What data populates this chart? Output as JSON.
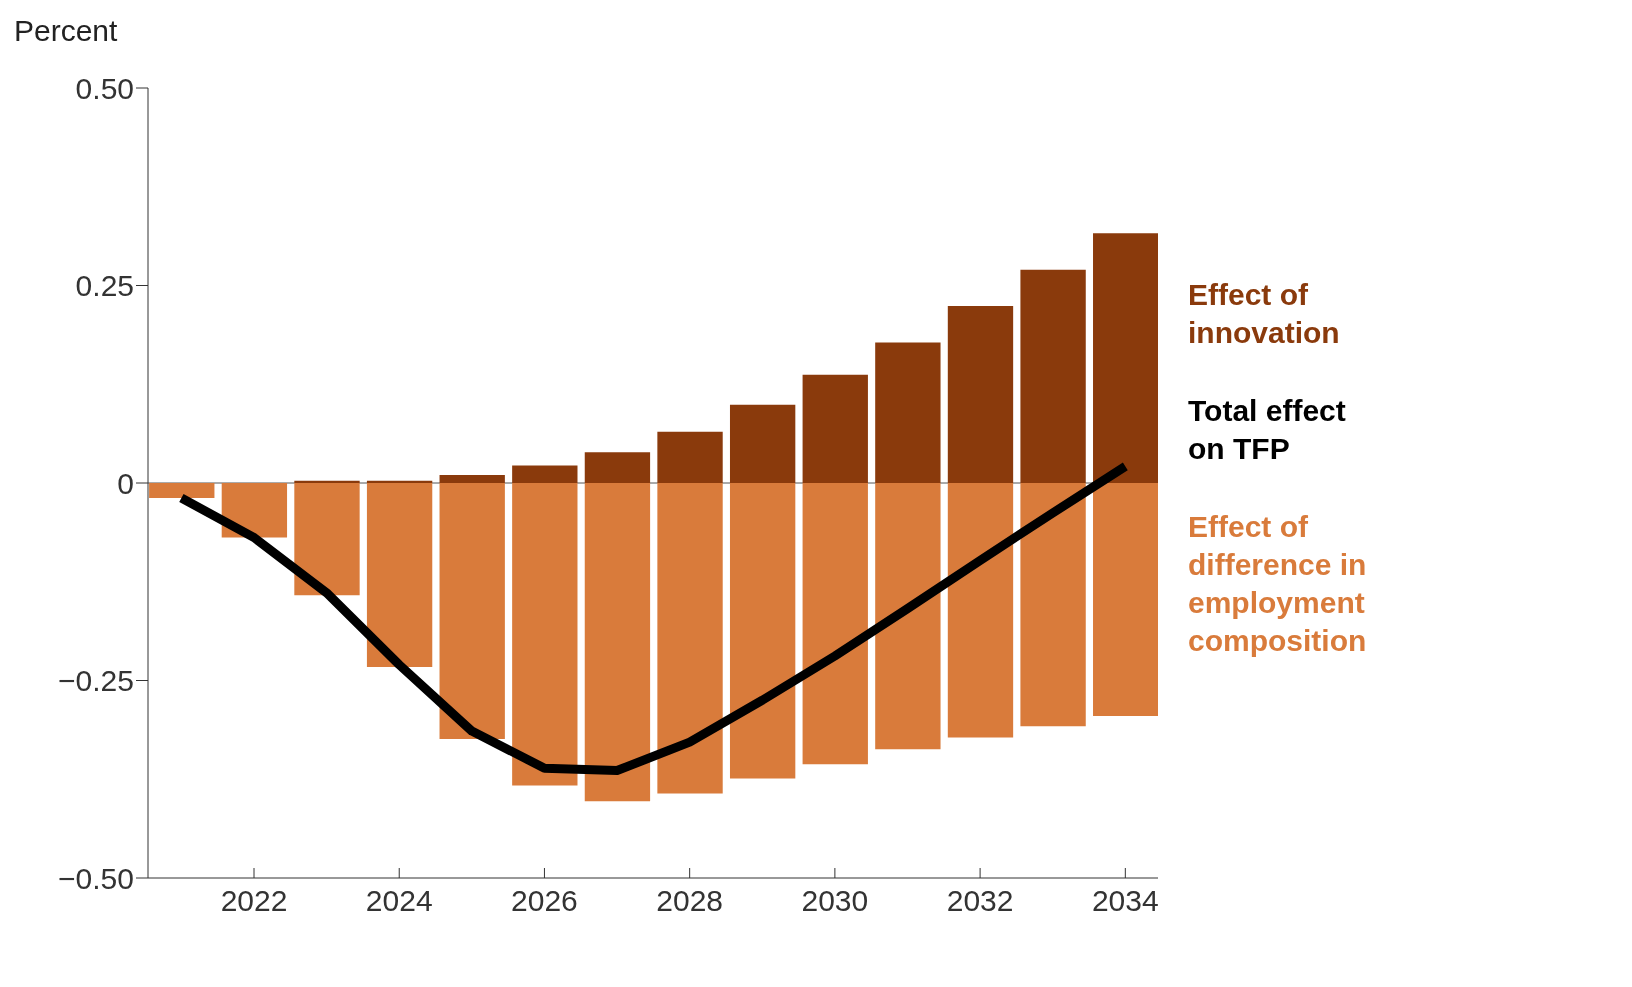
{
  "chart_data": {
    "type": "bar",
    "ylabel": "Percent",
    "stacked": true,
    "x": [
      2021,
      2022,
      2023,
      2024,
      2025,
      2026,
      2027,
      2028,
      2029,
      2030,
      2031,
      2032,
      2033,
      2034
    ],
    "series": [
      {
        "name": "Effect of innovation",
        "color": "#8a3a0c",
        "values": [
          0,
          0,
          0.003,
          0.003,
          0.01,
          0.022,
          0.039,
          0.065,
          0.099,
          0.137,
          0.178,
          0.224,
          0.27,
          0.316
        ]
      },
      {
        "name": "Total effect on TFP",
        "type": "line",
        "color": "#000000",
        "values": [
          -0.019,
          -0.069,
          -0.139,
          -0.23,
          -0.314,
          -0.361,
          -0.364,
          -0.328,
          -0.275,
          -0.219,
          -0.159,
          -0.098,
          -0.038,
          0.021
        ]
      },
      {
        "name": "Effect of difference in employment composition",
        "color": "#d97b3b",
        "values": [
          -0.019,
          -0.069,
          -0.142,
          -0.233,
          -0.324,
          -0.383,
          -0.403,
          -0.393,
          -0.374,
          -0.356,
          -0.337,
          -0.322,
          -0.308,
          -0.295
        ]
      }
    ],
    "xlim": [
      2020.54,
      2034.45
    ],
    "xticks": [
      2022,
      2024,
      2026,
      2028,
      2030,
      2032,
      2034
    ],
    "ylim": [
      -0.5,
      0.5
    ],
    "yticks": [
      {
        "value": -0.5,
        "label": "−0.50"
      },
      {
        "value": -0.25,
        "label": "−0.25"
      },
      {
        "value": 0,
        "label": "0"
      },
      {
        "value": 0.25,
        "label": "0.25"
      },
      {
        "value": 0.5,
        "label": "0.50"
      }
    ],
    "ref_lines": [
      {
        "axis": "y",
        "value": 0,
        "color": "#555555"
      }
    ],
    "grid": false,
    "legend": "right",
    "marker": "none",
    "line_style": "solid"
  }
}
